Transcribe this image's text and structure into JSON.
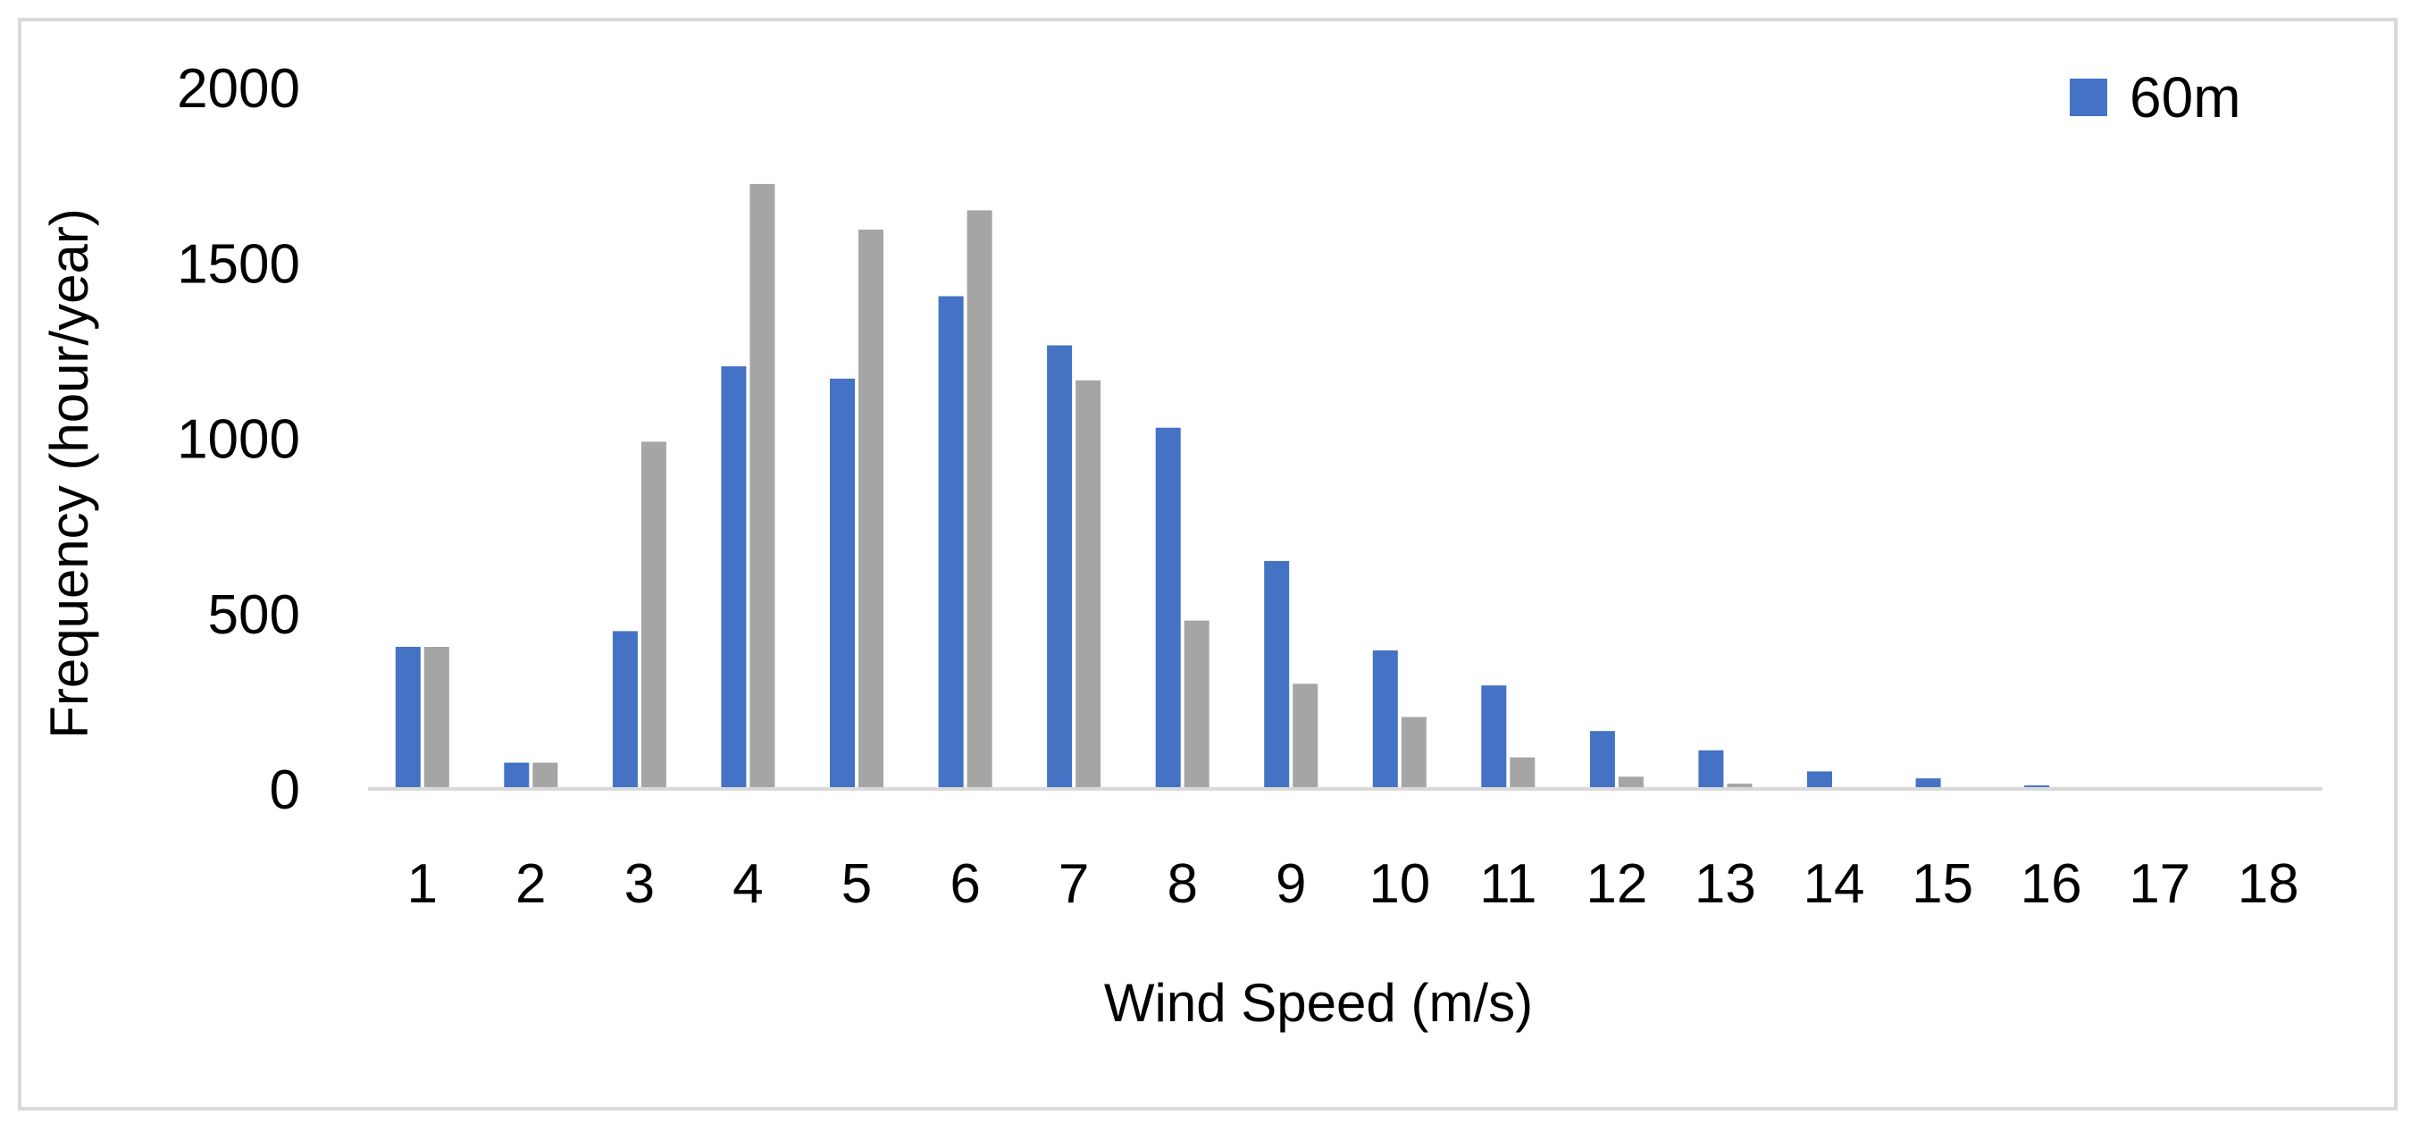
{
  "chart_data": {
    "type": "bar",
    "title": "",
    "xlabel": "Wind Speed (m/s)",
    "ylabel": "Frequency (hour/year)",
    "ylim": [
      0,
      2000
    ],
    "yticks": [
      0,
      500,
      1000,
      1500,
      2000
    ],
    "categories": [
      "1",
      "2",
      "3",
      "4",
      "5",
      "6",
      "7",
      "8",
      "9",
      "10",
      "11",
      "12",
      "13",
      "14",
      "15",
      "16",
      "17",
      "18"
    ],
    "grid": false,
    "legend_position": "top-right",
    "series": [
      {
        "name": "60m",
        "color": "#4472c4",
        "values": [
          405,
          75,
          450,
          1205,
          1170,
          1405,
          1265,
          1030,
          650,
          395,
          295,
          165,
          110,
          50,
          30,
          10,
          0,
          0
        ]
      },
      {
        "color": "#a5a5a5",
        "values": [
          405,
          75,
          990,
          1725,
          1595,
          1650,
          1165,
          480,
          300,
          205,
          90,
          35,
          15,
          0,
          0,
          0,
          0,
          0
        ]
      }
    ]
  }
}
